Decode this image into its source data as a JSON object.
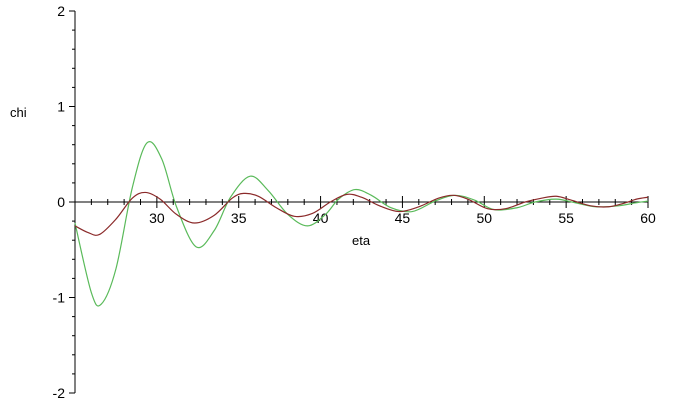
{
  "chart_data": {
    "type": "line",
    "title": "",
    "xlabel": "eta",
    "ylabel": "chi",
    "xlim": [
      25,
      60
    ],
    "ylim": [
      -2,
      2
    ],
    "x_ticks": [
      30,
      35,
      40,
      45,
      50,
      55,
      60
    ],
    "x_tick_labels": [
      "30",
      "35",
      "40",
      "45",
      "50",
      "55",
      "60"
    ],
    "y_ticks": [
      -2,
      -1,
      0,
      1,
      2
    ],
    "y_tick_labels": [
      "-2",
      "-1",
      "0",
      "1",
      "2"
    ],
    "grid": false,
    "legend": "none",
    "series": [
      {
        "color": "#5aba5a",
        "points": [
          [
            25,
            -0.22
          ],
          [
            26,
            -0.95
          ],
          [
            26.6,
            -1.07
          ],
          [
            27.5,
            -0.7
          ],
          [
            28.5,
            0.15
          ],
          [
            29.4,
            0.62
          ],
          [
            30.3,
            0.45
          ],
          [
            31.2,
            -0.05
          ],
          [
            32.4,
            -0.47
          ],
          [
            33.5,
            -0.3
          ],
          [
            34.5,
            0.05
          ],
          [
            35.7,
            0.27
          ],
          [
            36.8,
            0.12
          ],
          [
            38,
            -0.13
          ],
          [
            39.2,
            -0.25
          ],
          [
            40.3,
            -0.13
          ],
          [
            41.1,
            0.03
          ],
          [
            42.1,
            0.13
          ],
          [
            43.1,
            0.07
          ],
          [
            44.3,
            -0.06
          ],
          [
            45.6,
            -0.1
          ],
          [
            47.0,
            0.01
          ],
          [
            48.2,
            0.07
          ],
          [
            49.4,
            0.02
          ],
          [
            50.6,
            -0.08
          ],
          [
            52.0,
            -0.06
          ],
          [
            53.1,
            0.0
          ],
          [
            54.4,
            0.03
          ],
          [
            55.6,
            -0.01
          ],
          [
            56.8,
            -0.05
          ],
          [
            58.2,
            -0.04
          ],
          [
            59.2,
            -0.01
          ],
          [
            60,
            0.01
          ]
        ]
      },
      {
        "color": "#8b2a2a",
        "points": [
          [
            25,
            -0.25
          ],
          [
            25.8,
            -0.32
          ],
          [
            26.5,
            -0.34
          ],
          [
            27.5,
            -0.18
          ],
          [
            28.5,
            0.04
          ],
          [
            29.3,
            0.1
          ],
          [
            30.2,
            0.03
          ],
          [
            31.2,
            -0.13
          ],
          [
            32.3,
            -0.22
          ],
          [
            33.5,
            -0.14
          ],
          [
            34.6,
            0.04
          ],
          [
            35.3,
            0.09
          ],
          [
            36.2,
            0.06
          ],
          [
            37.3,
            -0.06
          ],
          [
            38.4,
            -0.15
          ],
          [
            39.5,
            -0.12
          ],
          [
            40.6,
            0.0
          ],
          [
            41.6,
            0.08
          ],
          [
            42.5,
            0.05
          ],
          [
            43.6,
            -0.04
          ],
          [
            44.8,
            -0.1
          ],
          [
            46.0,
            -0.05
          ],
          [
            47.2,
            0.04
          ],
          [
            48.1,
            0.07
          ],
          [
            49.0,
            0.03
          ],
          [
            50.2,
            -0.07
          ],
          [
            51.3,
            -0.07
          ],
          [
            52.5,
            0.0
          ],
          [
            53.5,
            0.04
          ],
          [
            54.4,
            0.06
          ],
          [
            55.3,
            0.02
          ],
          [
            56.5,
            -0.04
          ],
          [
            57.6,
            -0.05
          ],
          [
            58.6,
            -0.01
          ],
          [
            59.3,
            0.03
          ],
          [
            60,
            0.05
          ]
        ]
      }
    ]
  }
}
